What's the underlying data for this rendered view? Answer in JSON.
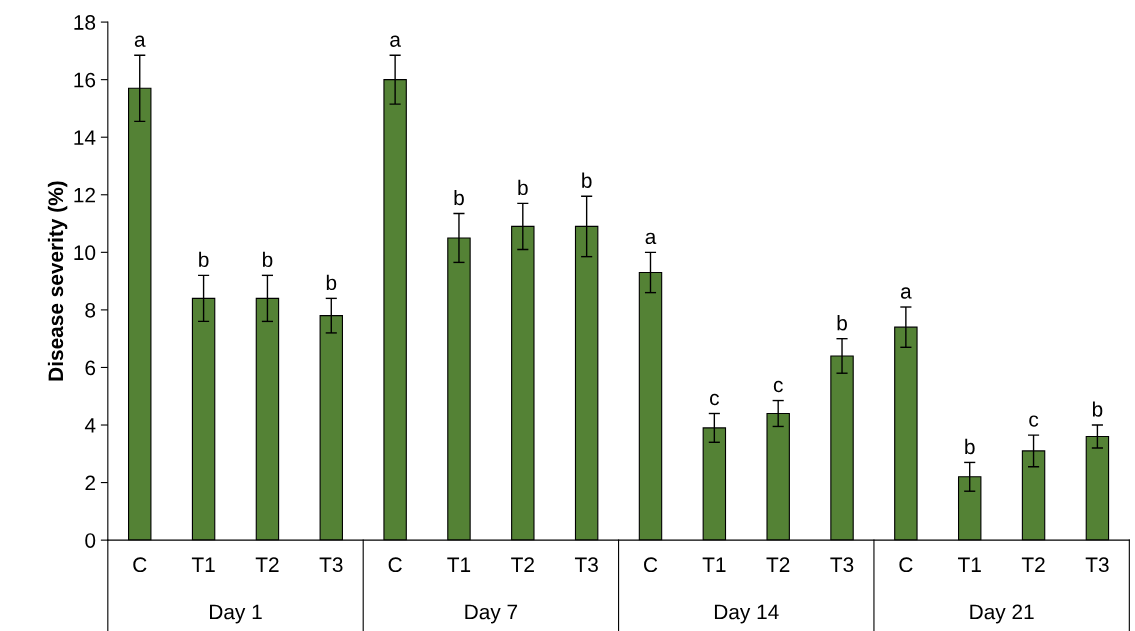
{
  "chart_data": {
    "type": "bar",
    "ylabel": "Disease severity (%)",
    "categories": [
      "C",
      "T1",
      "T2",
      "T3",
      "C",
      "T1",
      "T2",
      "T3",
      "C",
      "T1",
      "T2",
      "T3",
      "C",
      "T1",
      "T2",
      "T3"
    ],
    "values": [
      15.7,
      8.4,
      8.4,
      7.8,
      16.0,
      10.5,
      10.9,
      10.9,
      9.3,
      3.9,
      4.4,
      6.4,
      7.4,
      2.2,
      3.1,
      3.6
    ],
    "errors": [
      1.15,
      0.8,
      0.8,
      0.6,
      0.85,
      0.85,
      0.8,
      1.05,
      0.7,
      0.5,
      0.45,
      0.6,
      0.7,
      0.5,
      0.55,
      0.4
    ],
    "value_labels": [
      "a",
      "b",
      "b",
      "b",
      "a",
      "b",
      "b",
      "b",
      "a",
      "c",
      "c",
      "b",
      "a",
      "b",
      "c",
      "b"
    ],
    "annotations": [
      "Day 1",
      "Day 7",
      "Day 14",
      "Day 21"
    ],
    "color": "#548235",
    "ylim": [
      0,
      18
    ],
    "yticks": [
      0,
      2,
      4,
      6,
      8,
      10,
      12,
      14,
      16,
      18
    ],
    "grid": false
  }
}
